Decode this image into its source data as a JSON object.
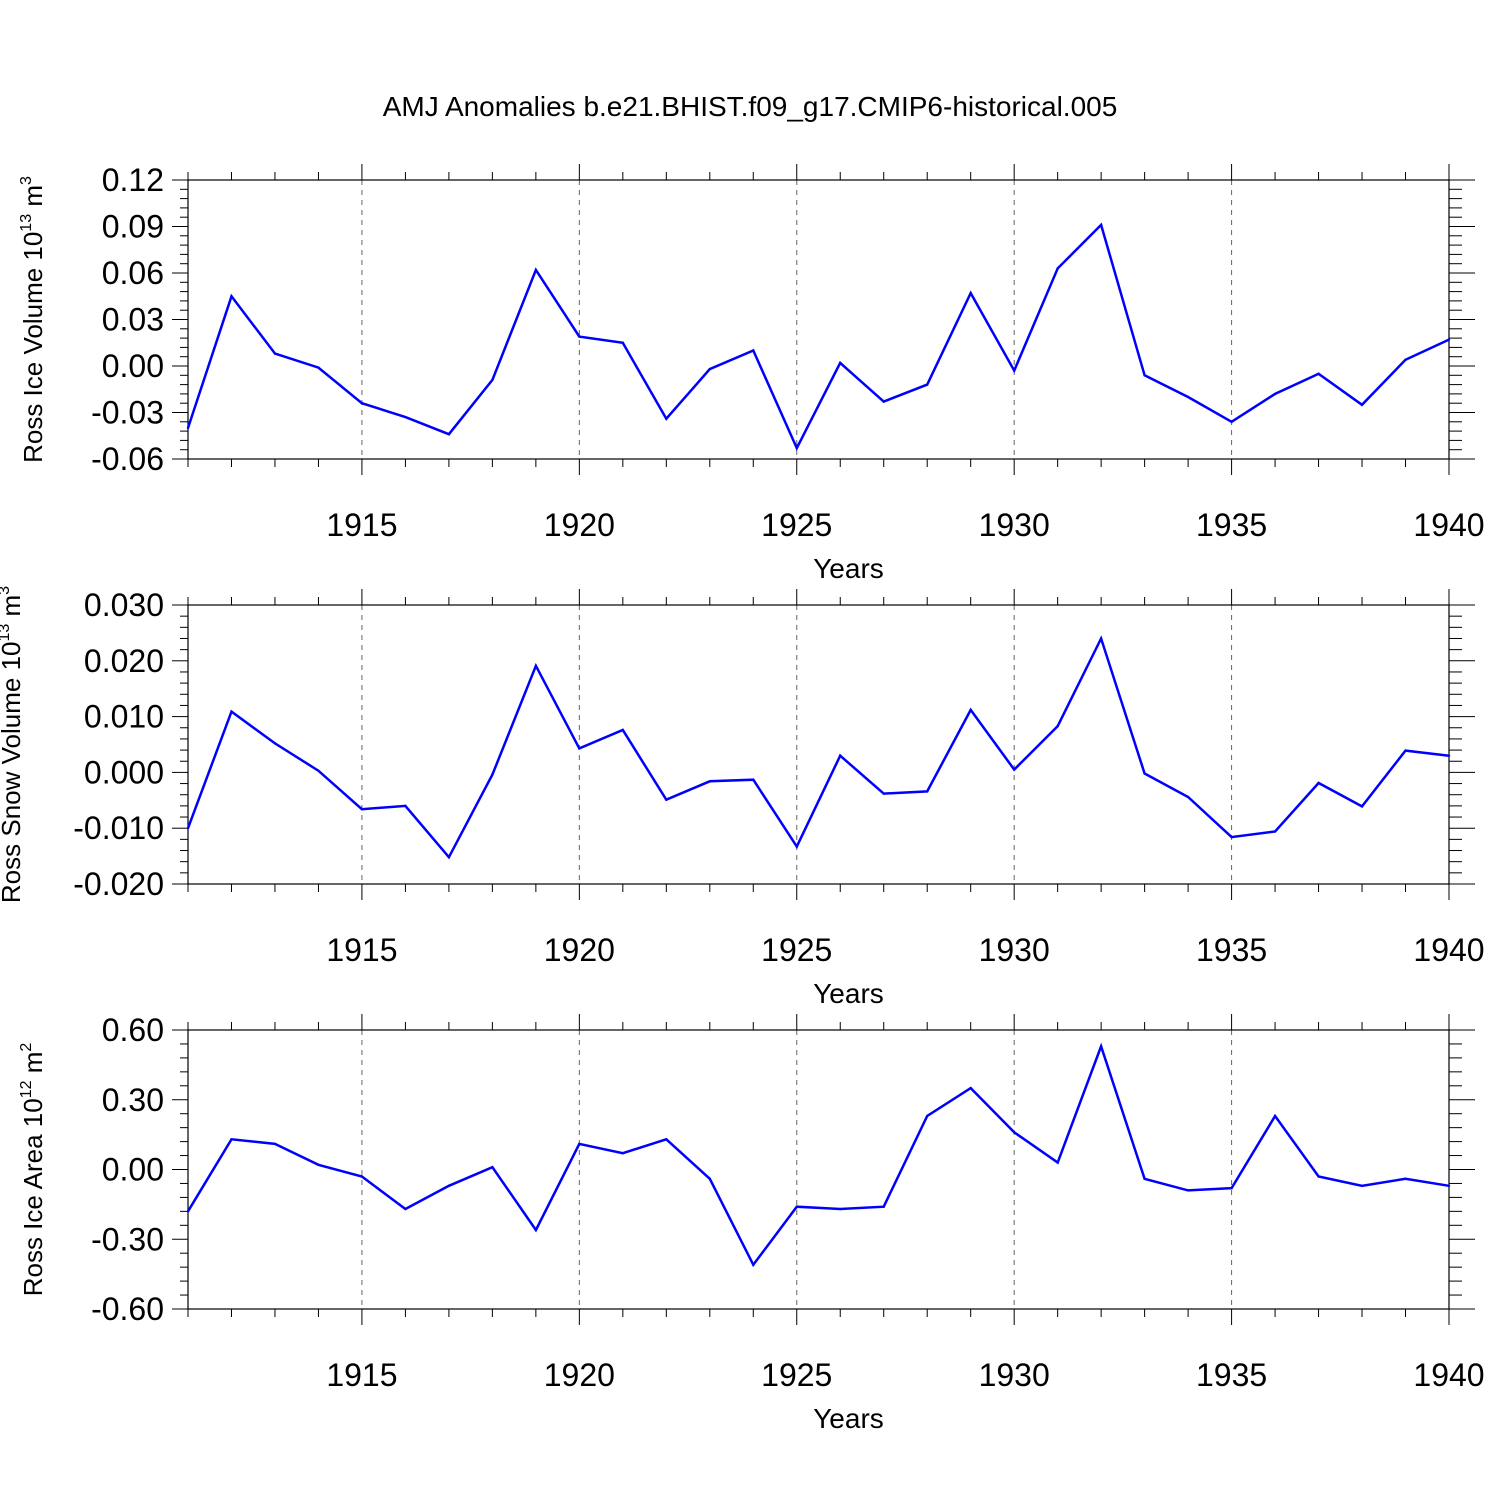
{
  "title": "AMJ Anomalies b.e21.BHIST.f09_g17.CMIP6-historical.005",
  "colors": {
    "line": "#0000ff",
    "axis": "#000000",
    "gridline": "#666666",
    "background": "#ffffff"
  },
  "chart_data": [
    {
      "type": "line",
      "ylabel": "Ross Ice Volume 10",
      "ylabel_exp": "13",
      "ylabel_unit": " m",
      "ylabel_unit_exp": "3",
      "xlabel": "Years",
      "xlim": [
        1911,
        1940
      ],
      "ylim": [
        -0.06,
        0.12
      ],
      "yticks": [
        -0.06,
        -0.03,
        0.0,
        0.03,
        0.06,
        0.09,
        0.12
      ],
      "ytick_labels": [
        "-0.06",
        "-0.03",
        "0.00",
        "0.03",
        "0.06",
        "0.09",
        "0.12"
      ],
      "xticks": [
        1915,
        1920,
        1925,
        1930,
        1935,
        1940
      ],
      "xtick_labels": [
        "1915",
        "1920",
        "1925",
        "1930",
        "1935",
        "1940"
      ],
      "x": [
        1911,
        1912,
        1913,
        1914,
        1915,
        1916,
        1917,
        1918,
        1919,
        1920,
        1921,
        1922,
        1923,
        1924,
        1925,
        1926,
        1927,
        1928,
        1929,
        1930,
        1931,
        1932,
        1933,
        1934,
        1935,
        1936,
        1937,
        1938,
        1939,
        1940
      ],
      "values": [
        -0.04,
        0.045,
        0.008,
        -0.001,
        -0.024,
        -0.033,
        -0.044,
        -0.009,
        0.062,
        0.019,
        0.015,
        -0.034,
        -0.002,
        0.01,
        -0.053,
        0.002,
        -0.023,
        -0.012,
        0.047,
        -0.003,
        0.063,
        0.091,
        -0.006,
        -0.02,
        -0.036,
        -0.018,
        -0.005,
        -0.025,
        0.004,
        0.017
      ]
    },
    {
      "type": "line",
      "ylabel": "Ross Snow Volume 10",
      "ylabel_exp": "13",
      "ylabel_unit": " m",
      "ylabel_unit_exp": "3",
      "xlabel": "Years",
      "xlim": [
        1911,
        1940
      ],
      "ylim": [
        -0.02,
        0.03
      ],
      "yticks": [
        -0.02,
        -0.01,
        0.0,
        0.01,
        0.02,
        0.03
      ],
      "ytick_labels": [
        "-0.020",
        "-0.010",
        "0.000",
        "0.010",
        "0.020",
        "0.030"
      ],
      "xticks": [
        1915,
        1920,
        1925,
        1930,
        1935,
        1940
      ],
      "xtick_labels": [
        "1915",
        "1920",
        "1925",
        "1930",
        "1935",
        "1940"
      ],
      "x": [
        1911,
        1912,
        1913,
        1914,
        1915,
        1916,
        1917,
        1918,
        1919,
        1920,
        1921,
        1922,
        1923,
        1924,
        1925,
        1926,
        1927,
        1928,
        1929,
        1930,
        1931,
        1932,
        1933,
        1934,
        1935,
        1936,
        1937,
        1938,
        1939,
        1940
      ],
      "values": [
        -0.01,
        0.0109,
        0.0052,
        0.0003,
        -0.0066,
        -0.006,
        -0.0152,
        -0.0004,
        0.0191,
        0.0043,
        0.0076,
        -0.0049,
        -0.0016,
        -0.0013,
        -0.0133,
        0.003,
        -0.0038,
        -0.0034,
        0.0112,
        0.0005,
        0.0083,
        0.024,
        -0.0002,
        -0.0044,
        -0.0116,
        -0.0106,
        -0.0019,
        -0.0061,
        0.0039,
        0.003
      ]
    },
    {
      "type": "line",
      "ylabel": "Ross Ice Area 10",
      "ylabel_exp": "12",
      "ylabel_unit": " m",
      "ylabel_unit_exp": "2",
      "xlabel": "Years",
      "xlim": [
        1911,
        1940
      ],
      "ylim": [
        -0.6,
        0.6
      ],
      "yticks": [
        -0.6,
        -0.3,
        0.0,
        0.3,
        0.6
      ],
      "ytick_labels": [
        "-0.60",
        "-0.30",
        "0.00",
        "0.30",
        "0.60"
      ],
      "xticks": [
        1915,
        1920,
        1925,
        1930,
        1935,
        1940
      ],
      "xtick_labels": [
        "1915",
        "1920",
        "1925",
        "1930",
        "1935",
        "1940"
      ],
      "x": [
        1911,
        1912,
        1913,
        1914,
        1915,
        1916,
        1917,
        1918,
        1919,
        1920,
        1921,
        1922,
        1923,
        1924,
        1925,
        1926,
        1927,
        1928,
        1929,
        1930,
        1931,
        1932,
        1933,
        1934,
        1935,
        1936,
        1937,
        1938,
        1939,
        1940
      ],
      "values": [
        -0.18,
        0.13,
        0.11,
        0.02,
        -0.03,
        -0.17,
        -0.07,
        0.01,
        -0.26,
        0.11,
        0.07,
        0.13,
        -0.04,
        -0.41,
        -0.16,
        -0.17,
        -0.16,
        0.23,
        0.35,
        0.16,
        0.03,
        0.53,
        -0.04,
        -0.09,
        -0.08,
        0.23,
        -0.03,
        -0.07,
        -0.04,
        -0.07
      ]
    }
  ]
}
